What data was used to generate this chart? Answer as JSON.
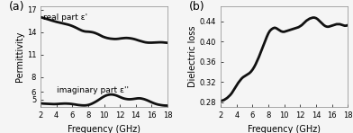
{
  "freq_a": [
    2.0,
    2.2,
    2.4,
    2.6,
    2.8,
    3.0,
    3.2,
    3.4,
    3.6,
    3.8,
    4.0,
    4.2,
    4.4,
    4.6,
    4.8,
    5.0,
    5.2,
    5.4,
    5.6,
    5.8,
    6.0,
    6.2,
    6.4,
    6.6,
    6.8,
    7.0,
    7.2,
    7.4,
    7.6,
    7.8,
    8.0,
    8.2,
    8.4,
    8.6,
    8.8,
    9.0,
    9.2,
    9.4,
    9.6,
    9.8,
    10.0,
    10.2,
    10.4,
    10.6,
    10.8,
    11.0,
    11.2,
    11.4,
    11.6,
    11.8,
    12.0,
    12.2,
    12.4,
    12.6,
    12.8,
    13.0,
    13.2,
    13.4,
    13.6,
    13.8,
    14.0,
    14.2,
    14.4,
    14.6,
    14.8,
    15.0,
    15.2,
    15.4,
    15.6,
    15.8,
    16.0,
    16.2,
    16.4,
    16.6,
    16.8,
    17.0,
    17.2,
    17.4,
    17.6,
    17.8,
    18.0
  ],
  "real_part": [
    16.0,
    15.95,
    15.88,
    15.82,
    15.76,
    15.7,
    15.63,
    15.56,
    15.5,
    15.44,
    15.38,
    15.33,
    15.28,
    15.23,
    15.18,
    15.13,
    15.08,
    15.03,
    14.97,
    14.9,
    14.82,
    14.73,
    14.63,
    14.53,
    14.42,
    14.32,
    14.22,
    14.15,
    14.1,
    14.08,
    14.07,
    14.05,
    14.02,
    13.98,
    13.92,
    13.84,
    13.75,
    13.65,
    13.54,
    13.43,
    13.35,
    13.28,
    13.22,
    13.18,
    13.14,
    13.12,
    13.1,
    13.09,
    13.1,
    13.12,
    13.15,
    13.18,
    13.2,
    13.22,
    13.23,
    13.22,
    13.2,
    13.17,
    13.13,
    13.08,
    13.02,
    12.95,
    12.88,
    12.82,
    12.76,
    12.7,
    12.65,
    12.62,
    12.6,
    12.6,
    12.6,
    12.61,
    12.62,
    12.63,
    12.64,
    12.65,
    12.65,
    12.64,
    12.62,
    12.6,
    12.58
  ],
  "imag_part": [
    4.5,
    4.48,
    4.46,
    4.45,
    4.44,
    4.43,
    4.42,
    4.41,
    4.4,
    4.4,
    4.41,
    4.42,
    4.44,
    4.45,
    4.46,
    4.47,
    4.47,
    4.46,
    4.45,
    4.43,
    4.4,
    4.37,
    4.34,
    4.3,
    4.27,
    4.25,
    4.23,
    4.22,
    4.22,
    4.24,
    4.28,
    4.34,
    4.42,
    4.52,
    4.63,
    4.75,
    4.88,
    5.02,
    5.16,
    5.3,
    5.42,
    5.52,
    5.6,
    5.65,
    5.68,
    5.68,
    5.65,
    5.6,
    5.53,
    5.44,
    5.35,
    5.26,
    5.18,
    5.12,
    5.08,
    5.05,
    5.04,
    5.05,
    5.07,
    5.1,
    5.13,
    5.16,
    5.17,
    5.16,
    5.12,
    5.07,
    5.0,
    4.92,
    4.83,
    4.73,
    4.64,
    4.55,
    4.47,
    4.4,
    4.34,
    4.3,
    4.26,
    4.23,
    4.21,
    4.2,
    4.2
  ],
  "freq_b": [
    2.0,
    2.2,
    2.4,
    2.6,
    2.8,
    3.0,
    3.2,
    3.4,
    3.6,
    3.8,
    4.0,
    4.2,
    4.4,
    4.6,
    4.8,
    5.0,
    5.2,
    5.4,
    5.6,
    5.8,
    6.0,
    6.2,
    6.4,
    6.6,
    6.8,
    7.0,
    7.2,
    7.4,
    7.6,
    7.8,
    8.0,
    8.2,
    8.4,
    8.6,
    8.8,
    9.0,
    9.2,
    9.4,
    9.6,
    9.8,
    10.0,
    10.2,
    10.4,
    10.6,
    10.8,
    11.0,
    11.2,
    11.4,
    11.6,
    11.8,
    12.0,
    12.2,
    12.4,
    12.6,
    12.8,
    13.0,
    13.2,
    13.4,
    13.6,
    13.8,
    14.0,
    14.2,
    14.4,
    14.6,
    14.8,
    15.0,
    15.2,
    15.4,
    15.6,
    15.8,
    16.0,
    16.2,
    16.4,
    16.6,
    16.8,
    17.0,
    17.2,
    17.4,
    17.6,
    17.8,
    18.0
  ],
  "dielectric_loss": [
    0.282,
    0.283,
    0.284,
    0.286,
    0.288,
    0.291,
    0.294,
    0.298,
    0.303,
    0.308,
    0.313,
    0.318,
    0.322,
    0.326,
    0.329,
    0.331,
    0.333,
    0.335,
    0.337,
    0.34,
    0.344,
    0.349,
    0.355,
    0.362,
    0.369,
    0.377,
    0.385,
    0.393,
    0.401,
    0.409,
    0.416,
    0.421,
    0.424,
    0.426,
    0.427,
    0.426,
    0.424,
    0.422,
    0.42,
    0.419,
    0.419,
    0.42,
    0.421,
    0.422,
    0.423,
    0.424,
    0.425,
    0.426,
    0.427,
    0.428,
    0.43,
    0.432,
    0.435,
    0.438,
    0.441,
    0.443,
    0.445,
    0.446,
    0.447,
    0.447,
    0.446,
    0.444,
    0.441,
    0.438,
    0.435,
    0.432,
    0.43,
    0.429,
    0.429,
    0.43,
    0.431,
    0.432,
    0.433,
    0.434,
    0.434,
    0.434,
    0.433,
    0.432,
    0.431,
    0.431,
    0.432
  ],
  "xlim": [
    2,
    18
  ],
  "ylim_a": [
    4.0,
    17.5
  ],
  "ylim_b": [
    0.27,
    0.47
  ],
  "yticks_a": [
    5,
    6,
    8,
    11,
    14,
    17
  ],
  "yticks_b": [
    0.28,
    0.32,
    0.36,
    0.4,
    0.44
  ],
  "xticks": [
    2,
    4,
    6,
    8,
    10,
    12,
    14,
    16,
    18
  ],
  "xlabel": "Frequency (GHz)",
  "ylabel_a": "Permittivity",
  "ylabel_b": "Dielectric loss",
  "label_real": "real part ε'",
  "label_imag": "imaginary part ε''",
  "panel_a": "(a)",
  "panel_b": "(b)",
  "line_color": "#111111",
  "line_width": 2.0,
  "bg_color": "#f5f5f5",
  "font_size_label": 7,
  "font_size_tick": 6,
  "font_size_panel": 9,
  "font_size_legend": 6.5
}
